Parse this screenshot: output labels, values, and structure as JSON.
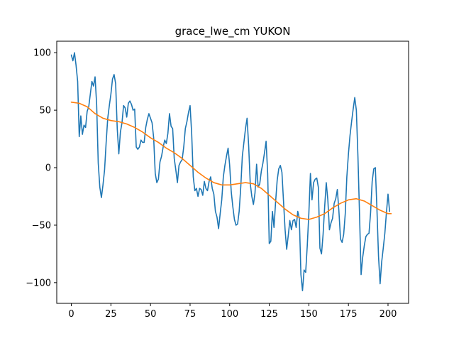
{
  "chart_data": {
    "type": "line",
    "title": "grace_lwe_cm YUKON",
    "xlabel": "",
    "ylabel": "",
    "xlim": [
      -9.2,
      213
    ],
    "ylim": [
      -118,
      110
    ],
    "x_ticks": [
      0,
      25,
      50,
      75,
      100,
      125,
      150,
      175,
      200
    ],
    "y_ticks": [
      -100,
      -50,
      0,
      50,
      100
    ],
    "grid": false,
    "series": [
      {
        "color": "#1f77b4",
        "points": [
          [
            0,
            98
          ],
          [
            1,
            93
          ],
          [
            2,
            100
          ],
          [
            3,
            89
          ],
          [
            4,
            75
          ],
          [
            5,
            27
          ],
          [
            6,
            45
          ],
          [
            7,
            29
          ],
          [
            8,
            37
          ],
          [
            9,
            35
          ],
          [
            10,
            49
          ],
          [
            11,
            53
          ],
          [
            12,
            64
          ],
          [
            13,
            75
          ],
          [
            14,
            71
          ],
          [
            15,
            79
          ],
          [
            16,
            55
          ],
          [
            17,
            4
          ],
          [
            18,
            -17
          ],
          [
            19,
            -26
          ],
          [
            20,
            -15
          ],
          [
            21,
            -2
          ],
          [
            22,
            22
          ],
          [
            23,
            43
          ],
          [
            24,
            54
          ],
          [
            25,
            64
          ],
          [
            26,
            77
          ],
          [
            27,
            81
          ],
          [
            28,
            73
          ],
          [
            29,
            34
          ],
          [
            30,
            12
          ],
          [
            31,
            31
          ],
          [
            32,
            39
          ],
          [
            33,
            54
          ],
          [
            34,
            52
          ],
          [
            35,
            44
          ],
          [
            36,
            56
          ],
          [
            37,
            58
          ],
          [
            38,
            55
          ],
          [
            39,
            50
          ],
          [
            40,
            51
          ],
          [
            41,
            18
          ],
          [
            42,
            16
          ],
          [
            43,
            18
          ],
          [
            44,
            24
          ],
          [
            45,
            22
          ],
          [
            46,
            22
          ],
          [
            47,
            35
          ],
          [
            48,
            42
          ],
          [
            49,
            47
          ],
          [
            50,
            43
          ],
          [
            51,
            39
          ],
          [
            52,
            26
          ],
          [
            53,
            -5
          ],
          [
            54,
            -13
          ],
          [
            55,
            -10
          ],
          [
            56,
            5
          ],
          [
            57,
            10
          ],
          [
            58,
            18
          ],
          [
            59,
            24
          ],
          [
            60,
            21
          ],
          [
            61,
            30
          ],
          [
            62,
            47
          ],
          [
            63,
            36
          ],
          [
            64,
            34
          ],
          [
            65,
            8
          ],
          [
            66,
            -2
          ],
          [
            67,
            -13
          ],
          [
            68,
            2
          ],
          [
            69,
            5
          ],
          [
            70,
            7
          ],
          [
            71,
            18
          ],
          [
            72,
            34
          ],
          [
            73,
            40
          ],
          [
            74,
            48
          ],
          [
            75,
            54
          ],
          [
            76,
            30
          ],
          [
            77,
            -8
          ],
          [
            78,
            -20
          ],
          [
            79,
            -18
          ],
          [
            80,
            -25
          ],
          [
            81,
            -18
          ],
          [
            82,
            -19
          ],
          [
            83,
            -24
          ],
          [
            84,
            -12
          ],
          [
            85,
            -18
          ],
          [
            86,
            -20
          ],
          [
            87,
            -12
          ],
          [
            88,
            -8
          ],
          [
            89,
            -18
          ],
          [
            90,
            -23
          ],
          [
            91,
            -38
          ],
          [
            92,
            -43
          ],
          [
            93,
            -53
          ],
          [
            94,
            -40
          ],
          [
            95,
            -28
          ],
          [
            96,
            -8
          ],
          [
            97,
            2
          ],
          [
            98,
            10
          ],
          [
            99,
            17
          ],
          [
            100,
            2
          ],
          [
            101,
            -21
          ],
          [
            102,
            -34
          ],
          [
            103,
            -45
          ],
          [
            104,
            -50
          ],
          [
            105,
            -49
          ],
          [
            106,
            -38
          ],
          [
            107,
            -17
          ],
          [
            108,
            10
          ],
          [
            109,
            22
          ],
          [
            110,
            34
          ],
          [
            111,
            43
          ],
          [
            112,
            19
          ],
          [
            113,
            -14
          ],
          [
            114,
            -25
          ],
          [
            115,
            -32
          ],
          [
            116,
            -22
          ],
          [
            117,
            3
          ],
          [
            118,
            -17
          ],
          [
            119,
            -14
          ],
          [
            120,
            -3
          ],
          [
            121,
            4
          ],
          [
            122,
            13
          ],
          [
            123,
            23
          ],
          [
            124,
            -5
          ],
          [
            125,
            -66
          ],
          [
            126,
            -64
          ],
          [
            127,
            -38
          ],
          [
            128,
            -52
          ],
          [
            129,
            -30
          ],
          [
            130,
            -11
          ],
          [
            131,
            -1
          ],
          [
            132,
            2
          ],
          [
            133,
            -4
          ],
          [
            134,
            -29
          ],
          [
            135,
            -54
          ],
          [
            136,
            -71
          ],
          [
            137,
            -59
          ],
          [
            138,
            -46
          ],
          [
            139,
            -54
          ],
          [
            140,
            -46
          ],
          [
            141,
            -45
          ],
          [
            142,
            -52
          ],
          [
            143,
            -38
          ],
          [
            144,
            -44
          ],
          [
            145,
            -93
          ],
          [
            146,
            -107
          ],
          [
            147,
            -89
          ],
          [
            148,
            -91
          ],
          [
            149,
            -68
          ],
          [
            150,
            -40
          ],
          [
            151,
            -5
          ],
          [
            152,
            -28
          ],
          [
            153,
            -13
          ],
          [
            154,
            -10
          ],
          [
            155,
            -9
          ],
          [
            156,
            -17
          ],
          [
            157,
            -70
          ],
          [
            158,
            -75
          ],
          [
            159,
            -58
          ],
          [
            160,
            -34
          ],
          [
            161,
            -13
          ],
          [
            162,
            -28
          ],
          [
            163,
            -54
          ],
          [
            164,
            -48
          ],
          [
            165,
            -44
          ],
          [
            166,
            -31
          ],
          [
            167,
            -27
          ],
          [
            168,
            -19
          ],
          [
            169,
            -38
          ],
          [
            170,
            -62
          ],
          [
            171,
            -65
          ],
          [
            172,
            -58
          ],
          [
            173,
            -40
          ],
          [
            174,
            -8
          ],
          [
            175,
            12
          ],
          [
            176,
            28
          ],
          [
            177,
            40
          ],
          [
            178,
            51
          ],
          [
            179,
            61
          ],
          [
            180,
            50
          ],
          [
            181,
            10
          ],
          [
            182,
            -40
          ],
          [
            183,
            -93
          ],
          [
            184,
            -78
          ],
          [
            185,
            -68
          ],
          [
            186,
            -60
          ],
          [
            187,
            -58
          ],
          [
            188,
            -57
          ],
          [
            189,
            -39
          ],
          [
            190,
            -12
          ],
          [
            191,
            -1
          ],
          [
            192,
            0
          ],
          [
            193,
            -36
          ],
          [
            194,
            -77
          ],
          [
            195,
            -101
          ],
          [
            196,
            -82
          ],
          [
            197,
            -70
          ],
          [
            198,
            -57
          ],
          [
            199,
            -39
          ],
          [
            200,
            -23
          ],
          [
            201,
            -38
          ]
        ]
      },
      {
        "color": "#ff7f0e",
        "points": [
          [
            0,
            57
          ],
          [
            5,
            56
          ],
          [
            10,
            53
          ],
          [
            15,
            47
          ],
          [
            20,
            43
          ],
          [
            25,
            41
          ],
          [
            30,
            40
          ],
          [
            35,
            38
          ],
          [
            40,
            35
          ],
          [
            45,
            31
          ],
          [
            50,
            26
          ],
          [
            55,
            22
          ],
          [
            60,
            17
          ],
          [
            65,
            13
          ],
          [
            70,
            8
          ],
          [
            75,
            2
          ],
          [
            80,
            -4
          ],
          [
            85,
            -9
          ],
          [
            90,
            -13
          ],
          [
            95,
            -15
          ],
          [
            100,
            -15
          ],
          [
            105,
            -14
          ],
          [
            110,
            -13
          ],
          [
            115,
            -14
          ],
          [
            120,
            -18
          ],
          [
            125,
            -24
          ],
          [
            130,
            -30
          ],
          [
            135,
            -36
          ],
          [
            140,
            -41
          ],
          [
            145,
            -44
          ],
          [
            150,
            -45
          ],
          [
            155,
            -43
          ],
          [
            160,
            -40
          ],
          [
            165,
            -35
          ],
          [
            170,
            -31
          ],
          [
            175,
            -28
          ],
          [
            180,
            -27
          ],
          [
            185,
            -29
          ],
          [
            190,
            -33
          ],
          [
            195,
            -37
          ],
          [
            200,
            -40
          ],
          [
            202,
            -40
          ]
        ]
      }
    ]
  }
}
